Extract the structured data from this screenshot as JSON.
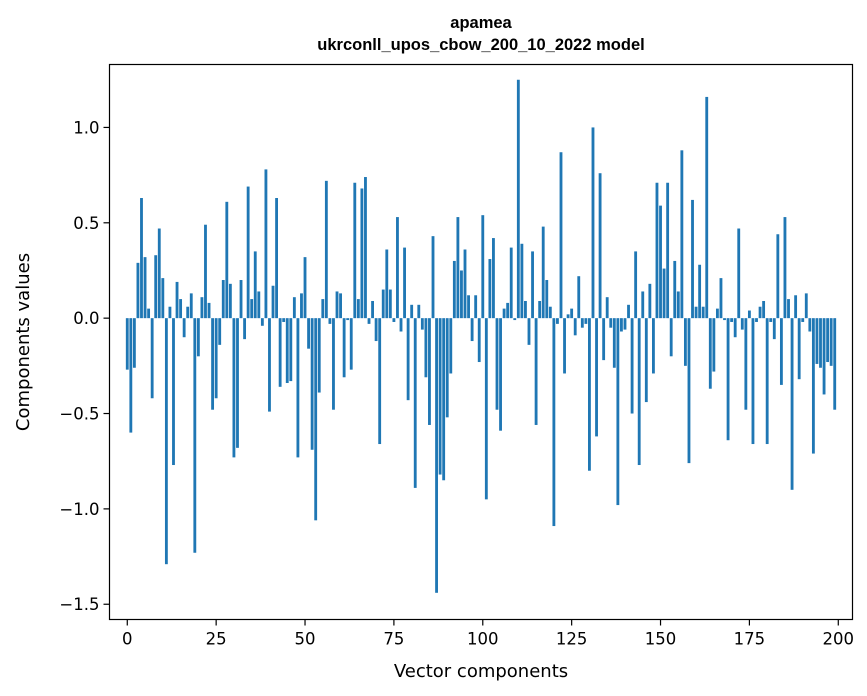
{
  "chart_data": {
    "type": "bar",
    "title": [
      "apamea",
      "ukrconll_upos_cbow_200_10_2022 model"
    ],
    "xlabel": "Vector components",
    "ylabel": "Components values",
    "xlim": [
      -5,
      204
    ],
    "ylim": [
      -1.58,
      1.33
    ],
    "xticks": [
      0,
      25,
      50,
      75,
      100,
      125,
      150,
      175,
      200
    ],
    "xtick_labels": [
      "0",
      "25",
      "50",
      "75",
      "100",
      "125",
      "150",
      "175",
      "200"
    ],
    "yticks": [
      -1.5,
      -1.0,
      -0.5,
      0.0,
      0.5,
      1.0
    ],
    "ytick_labels": [
      "−1.5",
      "−1.0",
      "−0.5",
      "0.0",
      "0.5",
      "1.0"
    ],
    "grid": false,
    "bar_color": "#1f77b4",
    "x": [
      0,
      1,
      2,
      3,
      4,
      5,
      6,
      7,
      8,
      9,
      10,
      11,
      12,
      13,
      14,
      15,
      16,
      17,
      18,
      19,
      20,
      21,
      22,
      23,
      24,
      25,
      26,
      27,
      28,
      29,
      30,
      31,
      32,
      33,
      34,
      35,
      36,
      37,
      38,
      39,
      40,
      41,
      42,
      43,
      44,
      45,
      46,
      47,
      48,
      49,
      50,
      51,
      52,
      53,
      54,
      55,
      56,
      57,
      58,
      59,
      60,
      61,
      62,
      63,
      64,
      65,
      66,
      67,
      68,
      69,
      70,
      71,
      72,
      73,
      74,
      75,
      76,
      77,
      78,
      79,
      80,
      81,
      82,
      83,
      84,
      85,
      86,
      87,
      88,
      89,
      90,
      91,
      92,
      93,
      94,
      95,
      96,
      97,
      98,
      99,
      100,
      101,
      102,
      103,
      104,
      105,
      106,
      107,
      108,
      109,
      110,
      111,
      112,
      113,
      114,
      115,
      116,
      117,
      118,
      119,
      120,
      121,
      122,
      123,
      124,
      125,
      126,
      127,
      128,
      129,
      130,
      131,
      132,
      133,
      134,
      135,
      136,
      137,
      138,
      139,
      140,
      141,
      142,
      143,
      144,
      145,
      146,
      147,
      148,
      149,
      150,
      151,
      152,
      153,
      154,
      155,
      156,
      157,
      158,
      159,
      160,
      161,
      162,
      163,
      164,
      165,
      166,
      167,
      168,
      169,
      170,
      171,
      172,
      173,
      174,
      175,
      176,
      177,
      178,
      179,
      180,
      181,
      182,
      183,
      184,
      185,
      186,
      187,
      188,
      189,
      190,
      191,
      192,
      193,
      194,
      195,
      196,
      197,
      198,
      199
    ],
    "values": [
      -0.27,
      -0.6,
      -0.26,
      0.29,
      0.63,
      0.32,
      0.05,
      -0.42,
      0.33,
      0.47,
      0.21,
      -1.29,
      0.06,
      -0.77,
      0.19,
      0.1,
      -0.1,
      0.06,
      0.13,
      -1.23,
      -0.2,
      0.11,
      0.49,
      0.08,
      -0.48,
      -0.42,
      -0.14,
      0.2,
      0.61,
      0.18,
      -0.73,
      -0.68,
      0.2,
      -0.11,
      0.69,
      0.1,
      0.35,
      0.14,
      -0.04,
      0.78,
      -0.49,
      0.17,
      0.63,
      -0.36,
      -0.02,
      -0.34,
      -0.33,
      0.11,
      -0.73,
      0.13,
      0.32,
      -0.16,
      -0.69,
      -1.06,
      -0.39,
      0.1,
      0.72,
      -0.03,
      -0.48,
      0.14,
      0.13,
      -0.31,
      -0.01,
      -0.27,
      0.71,
      0.1,
      0.68,
      0.74,
      -0.03,
      0.09,
      -0.12,
      -0.66,
      0.15,
      0.36,
      0.15,
      -0.02,
      0.53,
      -0.07,
      0.37,
      -0.43,
      0.07,
      -0.89,
      0.07,
      -0.06,
      -0.31,
      -0.56,
      0.43,
      -1.44,
      -0.82,
      -0.85,
      -0.52,
      -0.29,
      0.3,
      0.53,
      0.25,
      0.36,
      0.12,
      -0.12,
      0.12,
      -0.23,
      0.54,
      -0.95,
      0.31,
      0.42,
      -0.48,
      -0.59,
      0.05,
      0.08,
      0.37,
      -0.01,
      1.25,
      0.39,
      0.09,
      -0.14,
      0.35,
      -0.56,
      0.09,
      0.48,
      0.2,
      0.06,
      -1.09,
      -0.03,
      0.87,
      -0.29,
      0.02,
      0.05,
      -0.09,
      0.22,
      -0.05,
      -0.03,
      -0.8,
      1.0,
      -0.62,
      0.76,
      -0.22,
      0.11,
      -0.05,
      -0.26,
      -0.98,
      -0.07,
      -0.06,
      0.07,
      -0.5,
      0.35,
      -0.77,
      0.14,
      -0.44,
      0.18,
      -0.29,
      0.71,
      0.59,
      0.26,
      0.71,
      -0.2,
      0.3,
      0.14,
      0.88,
      -0.25,
      -0.76,
      0.62,
      0.06,
      0.28,
      0.06,
      1.16,
      -0.37,
      -0.28,
      0.05,
      0.21,
      -0.01,
      -0.64,
      -0.02,
      -0.1,
      0.47,
      -0.06,
      -0.48,
      0.04,
      -0.66,
      -0.02,
      0.06,
      0.09,
      -0.66,
      -0.02,
      -0.11,
      0.44,
      -0.35,
      0.53,
      0.1,
      -0.9,
      0.12,
      -0.32,
      -0.02,
      0.13,
      -0.07,
      -0.71,
      -0.24,
      -0.26,
      -0.4,
      -0.23,
      -0.25,
      -0.48
    ]
  }
}
